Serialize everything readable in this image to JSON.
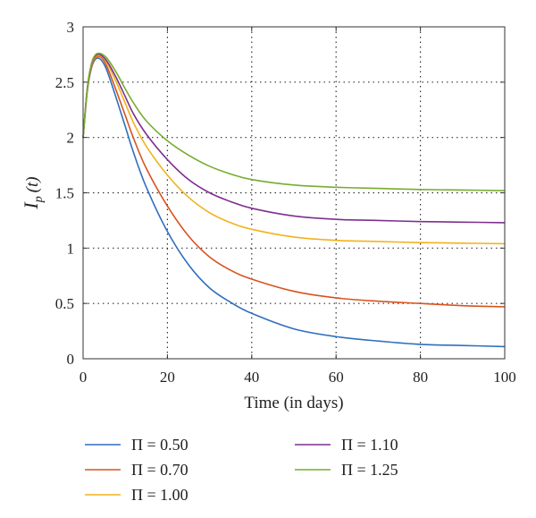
{
  "chart_data": {
    "type": "line",
    "title": "",
    "xlabel": "Time (in days)",
    "ylabel_main": "I",
    "ylabel_sub": "p",
    "ylabel_arg": "(t)",
    "xlim": [
      0,
      100
    ],
    "ylim": [
      0,
      3
    ],
    "x_ticks": [
      0,
      20,
      40,
      60,
      80,
      100
    ],
    "y_ticks": [
      0,
      0.5,
      1,
      1.5,
      2,
      2.5,
      3
    ],
    "y_tick_labels": [
      "0",
      "0.5",
      "1",
      "1.5",
      "2",
      "2.5",
      "3"
    ],
    "grid": true,
    "legend_position": "bottom",
    "x": [
      0,
      1,
      2,
      3,
      4,
      5,
      6,
      8,
      10,
      12,
      15,
      20,
      25,
      30,
      35,
      40,
      50,
      60,
      70,
      80,
      90,
      100
    ],
    "series": [
      {
        "name": "Π = 0.50",
        "color": "#2f6fbf",
        "values": [
          2.0,
          2.42,
          2.63,
          2.71,
          2.71,
          2.66,
          2.57,
          2.34,
          2.1,
          1.86,
          1.55,
          1.15,
          0.85,
          0.64,
          0.51,
          0.41,
          0.27,
          0.2,
          0.16,
          0.13,
          0.12,
          0.11
        ]
      },
      {
        "name": "Π = 0.70",
        "color": "#d9531f",
        "values": [
          2.0,
          2.43,
          2.64,
          2.72,
          2.73,
          2.69,
          2.61,
          2.41,
          2.2,
          1.99,
          1.72,
          1.38,
          1.11,
          0.92,
          0.8,
          0.72,
          0.61,
          0.55,
          0.52,
          0.5,
          0.48,
          0.47
        ]
      },
      {
        "name": "Π = 1.00",
        "color": "#f2b21b",
        "values": [
          2.0,
          2.43,
          2.65,
          2.73,
          2.74,
          2.71,
          2.65,
          2.49,
          2.31,
          2.13,
          1.92,
          1.66,
          1.46,
          1.32,
          1.23,
          1.17,
          1.1,
          1.07,
          1.06,
          1.05,
          1.045,
          1.04
        ]
      },
      {
        "name": "Π = 1.10",
        "color": "#7e2f8e",
        "values": [
          2.0,
          2.44,
          2.66,
          2.74,
          2.75,
          2.72,
          2.67,
          2.53,
          2.37,
          2.21,
          2.03,
          1.8,
          1.62,
          1.5,
          1.42,
          1.36,
          1.29,
          1.26,
          1.25,
          1.24,
          1.235,
          1.23
        ]
      },
      {
        "name": "Π = 1.25",
        "color": "#77ac30",
        "values": [
          2.0,
          2.45,
          2.67,
          2.75,
          2.76,
          2.74,
          2.7,
          2.58,
          2.44,
          2.31,
          2.15,
          1.97,
          1.84,
          1.74,
          1.67,
          1.62,
          1.57,
          1.55,
          1.54,
          1.53,
          1.525,
          1.52
        ]
      }
    ]
  }
}
